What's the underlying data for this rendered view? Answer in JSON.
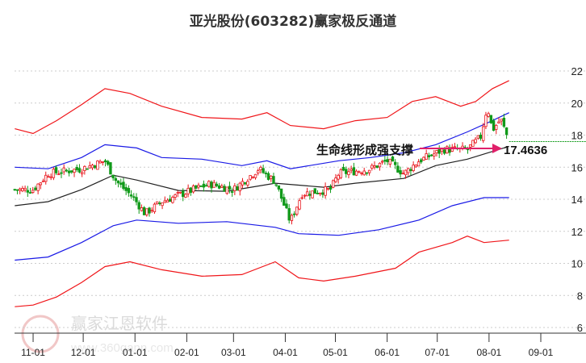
{
  "title": "亚光股份(603282)赢家极反通道",
  "annotation": {
    "text": "生命线形成强支撑",
    "value": "17.4636",
    "arrow_color": "#e0206a"
  },
  "watermark": {
    "logo_chars": "江赢恩家",
    "name": "赢家江恩软件",
    "url": "www.360gann.com"
  },
  "chart_data": {
    "type": "line",
    "title": "亚光股份(603282)赢家极反通道",
    "x_unit": "days since 10-21",
    "xlim": [
      0,
      340
    ],
    "ylim": [
      6,
      22
    ],
    "y_ticks": [
      6,
      8,
      10,
      12,
      14,
      16,
      18,
      20,
      22
    ],
    "x_ticks": [
      {
        "label": "11-01",
        "x": 12
      },
      {
        "label": "12-01",
        "x": 42
      },
      {
        "label": "01-01",
        "x": 73
      },
      {
        "label": "02-01",
        "x": 104
      },
      {
        "label": "03-01",
        "x": 132
      },
      {
        "label": "04-01",
        "x": 163
      },
      {
        "label": "05-01",
        "x": 193
      },
      {
        "label": "06-01",
        "x": 224
      },
      {
        "label": "07-01",
        "x": 254
      },
      {
        "label": "08-01",
        "x": 285
      },
      {
        "label": "09-01",
        "x": 316
      }
    ],
    "grid": true,
    "colors": {
      "up": "#e8141b",
      "down": "#119a1a",
      "outer": "#f0161a",
      "inner": "#1a1ae6",
      "mid": "#222222",
      "last": "#119a1a"
    },
    "series": [
      {
        "name": "outer-upper",
        "role": "outer",
        "points": [
          [
            1,
            18.4
          ],
          [
            12,
            18.1
          ],
          [
            26,
            18.9
          ],
          [
            41,
            19.9
          ],
          [
            55,
            20.9
          ],
          [
            70,
            20.6
          ],
          [
            89,
            19.8
          ],
          [
            113,
            19.1
          ],
          [
            137,
            19.0
          ],
          [
            152,
            19.4
          ],
          [
            166,
            18.6
          ],
          [
            186,
            18.4
          ],
          [
            205,
            18.9
          ],
          [
            224,
            19.1
          ],
          [
            239,
            20.1
          ],
          [
            253,
            20.4
          ],
          [
            268,
            19.8
          ],
          [
            277,
            20.1
          ],
          [
            287,
            20.9
          ],
          [
            297,
            21.4
          ]
        ]
      },
      {
        "name": "inner-upper",
        "role": "inner",
        "points": [
          [
            1,
            16.0
          ],
          [
            21,
            15.9
          ],
          [
            41,
            16.6
          ],
          [
            55,
            17.4
          ],
          [
            74,
            17.2
          ],
          [
            89,
            16.6
          ],
          [
            113,
            16.5
          ],
          [
            137,
            16.1
          ],
          [
            152,
            16.4
          ],
          [
            166,
            15.9
          ],
          [
            195,
            16.4
          ],
          [
            214,
            16.6
          ],
          [
            234,
            16.9
          ],
          [
            253,
            17.4
          ],
          [
            272,
            18.2
          ],
          [
            287,
            18.9
          ],
          [
            297,
            19.4
          ]
        ]
      },
      {
        "name": "middle",
        "role": "mid",
        "points": [
          [
            1,
            13.6
          ],
          [
            21,
            13.85
          ],
          [
            41,
            14.6
          ],
          [
            60,
            15.5
          ],
          [
            74,
            15.2
          ],
          [
            99,
            14.55
          ],
          [
            128,
            14.5
          ],
          [
            157,
            15.0
          ],
          [
            186,
            14.75
          ],
          [
            205,
            15.0
          ],
          [
            234,
            15.3
          ],
          [
            253,
            16.1
          ],
          [
            272,
            16.5
          ],
          [
            297,
            17.3
          ]
        ]
      },
      {
        "name": "inner-lower",
        "role": "inner",
        "points": [
          [
            1,
            10.2
          ],
          [
            21,
            10.4
          ],
          [
            41,
            11.3
          ],
          [
            60,
            12.35
          ],
          [
            74,
            12.7
          ],
          [
            99,
            12.5
          ],
          [
            128,
            12.6
          ],
          [
            157,
            12.25
          ],
          [
            171,
            11.85
          ],
          [
            195,
            11.75
          ],
          [
            219,
            12.1
          ],
          [
            243,
            12.7
          ],
          [
            263,
            13.6
          ],
          [
            282,
            14.1
          ],
          [
            297,
            14.1
          ]
        ]
      },
      {
        "name": "outer-lower",
        "role": "outer",
        "points": [
          [
            1,
            7.3
          ],
          [
            12,
            7.4
          ],
          [
            26,
            7.9
          ],
          [
            41,
            8.8
          ],
          [
            55,
            9.8
          ],
          [
            70,
            10.1
          ],
          [
            89,
            9.6
          ],
          [
            113,
            9.2
          ],
          [
            137,
            9.3
          ],
          [
            157,
            10.1
          ],
          [
            171,
            9.1
          ],
          [
            186,
            8.9
          ],
          [
            205,
            9.2
          ],
          [
            229,
            9.7
          ],
          [
            243,
            10.7
          ],
          [
            263,
            11.3
          ],
          [
            272,
            11.7
          ],
          [
            282,
            11.3
          ],
          [
            297,
            11.45
          ]
        ]
      }
    ],
    "close_path": [
      [
        1,
        14.6
      ],
      [
        12,
        14.6
      ],
      [
        21,
        15.6
      ],
      [
        41,
        15.9
      ],
      [
        55,
        16.4
      ],
      [
        62,
        15.1
      ],
      [
        72,
        14.1
      ],
      [
        79,
        13.1
      ],
      [
        89,
        13.85
      ],
      [
        108,
        14.6
      ],
      [
        118,
        14.95
      ],
      [
        132,
        14.6
      ],
      [
        147,
        15.9
      ],
      [
        157,
        15.1
      ],
      [
        166,
        12.6
      ],
      [
        173,
        14.35
      ],
      [
        190,
        14.6
      ],
      [
        195,
        15.6
      ],
      [
        214,
        15.9
      ],
      [
        224,
        16.4
      ],
      [
        234,
        15.6
      ],
      [
        243,
        16.4
      ],
      [
        258,
        17.1
      ],
      [
        272,
        17.1
      ],
      [
        280,
        17.9
      ],
      [
        284,
        19.8
      ],
      [
        287,
        18.3
      ],
      [
        292,
        19.0
      ],
      [
        297,
        17.6
      ]
    ],
    "last_value": 17.6
  }
}
